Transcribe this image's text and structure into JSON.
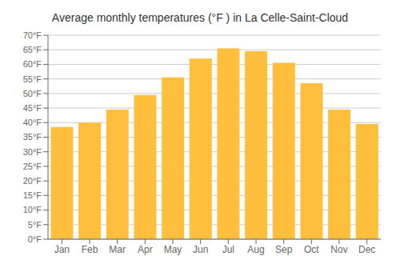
{
  "chart_data": {
    "type": "bar",
    "title": "Average monthly temperatures (°F ) in La Celle-Saint-Cloud",
    "categories": [
      "Jan",
      "Feb",
      "Mar",
      "Apr",
      "May",
      "Jun",
      "Jul",
      "Aug",
      "Sep",
      "Oct",
      "Nov",
      "Dec"
    ],
    "values": [
      38.5,
      40.0,
      44.5,
      49.5,
      55.5,
      62.0,
      65.5,
      64.5,
      60.5,
      53.5,
      44.5,
      39.5
    ],
    "color": "#FFBE3C",
    "ylim": [
      0,
      70
    ],
    "yticks": [
      {
        "value": 0,
        "label": "0°F"
      },
      {
        "value": 5,
        "label": "5°F"
      },
      {
        "value": 10,
        "label": "10°F"
      },
      {
        "value": 15,
        "label": "15°F"
      },
      {
        "value": 20,
        "label": "20°F"
      },
      {
        "value": 25,
        "label": "25°F"
      },
      {
        "value": 30,
        "label": "30°F"
      },
      {
        "value": 35,
        "label": "35°F"
      },
      {
        "value": 40,
        "label": "40°F"
      },
      {
        "value": 45,
        "label": "45°F"
      },
      {
        "value": 50,
        "label": "50°F"
      },
      {
        "value": 55,
        "label": "55°F"
      },
      {
        "value": 60,
        "label": "60°F"
      },
      {
        "value": 65,
        "label": "65°F"
      },
      {
        "value": 70,
        "label": "70°F"
      }
    ],
    "grid": true
  }
}
